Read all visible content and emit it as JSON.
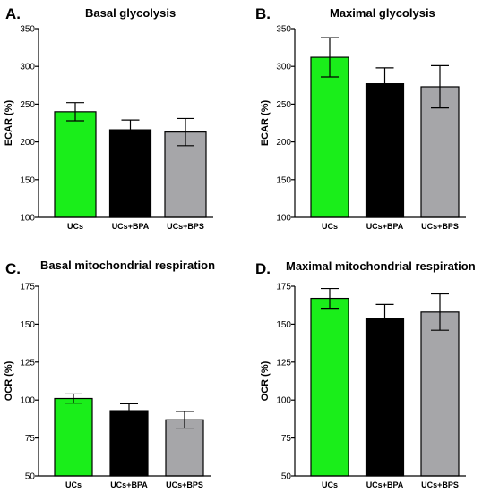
{
  "chart_data": [
    {
      "type": "bar",
      "panel_letter": "A.",
      "title": "Basal glycolysis",
      "ylabel": "ECAR (%)",
      "xlabel": "",
      "categories": [
        "UCs",
        "UCs+BPA",
        "UCs+BPS"
      ],
      "values": [
        240,
        216,
        213
      ],
      "errors": [
        12,
        13,
        18
      ],
      "ylim": [
        100,
        350
      ],
      "yticks": [
        100,
        150,
        200,
        250,
        300,
        350
      ],
      "colors": [
        "#1aee1a",
        "#000000",
        "#a6a6a9"
      ]
    },
    {
      "type": "bar",
      "panel_letter": "B.",
      "title": "Maximal glycolysis",
      "ylabel": "ECAR (%)",
      "xlabel": "",
      "categories": [
        "UCs",
        "UCs+BPA",
        "UCs+BPS"
      ],
      "values": [
        312,
        277,
        273
      ],
      "errors": [
        26,
        21,
        28
      ],
      "ylim": [
        100,
        350
      ],
      "yticks": [
        100,
        150,
        200,
        250,
        300,
        350
      ],
      "colors": [
        "#1aee1a",
        "#000000",
        "#a6a6a9"
      ]
    },
    {
      "type": "bar",
      "panel_letter": "C.",
      "title": "Basal mitochondrial respiration",
      "ylabel": "OCR (%)",
      "xlabel": "",
      "categories": [
        "UCs",
        "UCs+BPA",
        "UCs+BPS"
      ],
      "values": [
        101,
        93,
        87
      ],
      "errors": [
        3,
        4.5,
        5.5
      ],
      "ylim": [
        50,
        175
      ],
      "yticks": [
        50,
        75,
        100,
        125,
        150,
        175
      ],
      "colors": [
        "#1aee1a",
        "#000000",
        "#a6a6a9"
      ]
    },
    {
      "type": "bar",
      "panel_letter": "D.",
      "title": "Maximal mitochondrial respiration",
      "ylabel": "OCR (%)",
      "xlabel": "",
      "categories": [
        "UCs",
        "UCs+BPA",
        "UCs+BPS"
      ],
      "values": [
        167,
        154,
        158
      ],
      "errors": [
        6.5,
        9,
        12
      ],
      "ylim": [
        50,
        175
      ],
      "yticks": [
        50,
        75,
        100,
        125,
        150,
        175
      ],
      "colors": [
        "#1aee1a",
        "#000000",
        "#a6a6a9"
      ]
    }
  ]
}
